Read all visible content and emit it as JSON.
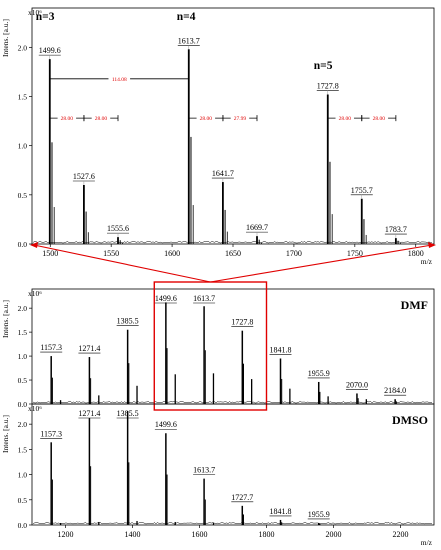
{
  "chart_data": [
    {
      "type": "line",
      "panel": "top",
      "ylabel": "Intens. [a.u.]",
      "xlabel": "m/z",
      "y_multiplier": "x10⁶",
      "xlim": [
        1485,
        1815
      ],
      "ylim": [
        0,
        2.4
      ],
      "xticks": [
        1500,
        1550,
        1600,
        1650,
        1700,
        1750,
        1800
      ],
      "yticks": [
        0.0,
        0.5,
        1.0,
        1.5,
        2.0
      ],
      "peaks": [
        {
          "mz": 1499.6,
          "intensity": 1.88,
          "label": "1499.6"
        },
        {
          "mz": 1527.6,
          "intensity": 0.6,
          "label": "1527.6"
        },
        {
          "mz": 1555.6,
          "intensity": 0.07,
          "label": "1555.6"
        },
        {
          "mz": 1613.7,
          "intensity": 1.98,
          "label": "1613.7"
        },
        {
          "mz": 1641.7,
          "intensity": 0.63,
          "label": "1641.7"
        },
        {
          "mz": 1669.7,
          "intensity": 0.08,
          "label": "1669.7"
        },
        {
          "mz": 1727.8,
          "intensity": 1.52,
          "label": "1727.8"
        },
        {
          "mz": 1755.7,
          "intensity": 0.46,
          "label": "1755.7"
        },
        {
          "mz": 1783.7,
          "intensity": 0.06,
          "label": "1783.7"
        }
      ],
      "annotations": [
        {
          "text": "n=3",
          "mz": 1499.6
        },
        {
          "text": "n=4",
          "mz": 1613.7
        },
        {
          "text": "n=5",
          "mz": 1727.8
        }
      ],
      "spacings": [
        {
          "text": "114.08",
          "from": 1499.6,
          "to": 1613.7,
          "level": 1.68
        },
        {
          "text": "28.00",
          "from": 1499.6,
          "to": 1527.6,
          "level": 1.28
        },
        {
          "text": "28.00",
          "from": 1527.6,
          "to": 1555.6,
          "level": 1.28
        },
        {
          "text": "28.00",
          "from": 1613.7,
          "to": 1641.7,
          "level": 1.28
        },
        {
          "text": "27.99",
          "from": 1641.7,
          "to": 1669.7,
          "level": 1.28
        },
        {
          "text": "28.00",
          "from": 1727.8,
          "to": 1755.7,
          "level": 1.28
        },
        {
          "text": "28.00",
          "from": 1755.7,
          "to": 1783.7,
          "level": 1.28
        }
      ]
    },
    {
      "type": "line",
      "panel": "middle",
      "name": "DMF",
      "ylabel": "Intens. [a.u.]",
      "y_multiplier": "x10⁶",
      "xlim": [
        1100,
        2300
      ],
      "ylim": [
        0,
        2.4
      ],
      "yticks": [
        0.0,
        0.5,
        1.0,
        1.5,
        2.0
      ],
      "peaks": [
        {
          "mz": 1157.3,
          "intensity": 1.0,
          "label": "1157.3"
        },
        {
          "mz": 1271.4,
          "intensity": 0.98,
          "label": "1271.4"
        },
        {
          "mz": 1385.5,
          "intensity": 1.55,
          "label": "1385.5"
        },
        {
          "mz": 1499.6,
          "intensity": 2.12,
          "label": "1499.6"
        },
        {
          "mz": 1613.7,
          "intensity": 2.04,
          "label": "1613.7"
        },
        {
          "mz": 1727.8,
          "intensity": 1.53,
          "label": "1727.8"
        },
        {
          "mz": 1841.8,
          "intensity": 0.95,
          "label": "1841.8"
        },
        {
          "mz": 1955.9,
          "intensity": 0.46,
          "label": "1955.9"
        },
        {
          "mz": 2070.0,
          "intensity": 0.22,
          "label": "2070.0"
        },
        {
          "mz": 2184.0,
          "intensity": 0.1,
          "label": "2184.0"
        }
      ],
      "minor_peaks": [
        {
          "mz": 1185.3,
          "intensity": 0.08
        },
        {
          "mz": 1299.4,
          "intensity": 0.18
        },
        {
          "mz": 1413.5,
          "intensity": 0.38
        },
        {
          "mz": 1527.6,
          "intensity": 0.62
        },
        {
          "mz": 1641.7,
          "intensity": 0.64
        },
        {
          "mz": 1755.7,
          "intensity": 0.52
        },
        {
          "mz": 1869.8,
          "intensity": 0.32
        },
        {
          "mz": 1983.9,
          "intensity": 0.16
        },
        {
          "mz": 2098.0,
          "intensity": 0.1
        }
      ],
      "zoom_box": {
        "from": 1465,
        "to": 1800
      }
    },
    {
      "type": "line",
      "panel": "bottom",
      "name": "DMSO",
      "ylabel": "Intens. [a.u.]",
      "xlabel": "m/z",
      "y_multiplier": "x10⁶",
      "xlim": [
        1100,
        2300
      ],
      "ylim": [
        0,
        2.4
      ],
      "xticks": [
        1200,
        1400,
        1600,
        1800,
        2000,
        2200
      ],
      "yticks": [
        0.0,
        0.5,
        1.0,
        1.5,
        2.0
      ],
      "peaks": [
        {
          "mz": 1157.3,
          "intensity": 1.64,
          "label": "1157.3"
        },
        {
          "mz": 1271.4,
          "intensity": 2.12,
          "label": "1271.4"
        },
        {
          "mz": 1385.5,
          "intensity": 2.26,
          "label": "1385.5"
        },
        {
          "mz": 1499.6,
          "intensity": 1.82,
          "label": "1499.6"
        },
        {
          "mz": 1613.7,
          "intensity": 0.92,
          "label": "1613.7"
        },
        {
          "mz": 1727.7,
          "intensity": 0.38,
          "label": "1727.7"
        },
        {
          "mz": 1841.8,
          "intensity": 0.1,
          "label": "1841.8"
        },
        {
          "mz": 1955.9,
          "intensity": 0.04,
          "label": "1955.9"
        }
      ],
      "minor_peaks": [
        {
          "mz": 1185.3,
          "intensity": 0.04
        },
        {
          "mz": 1299.4,
          "intensity": 0.06
        },
        {
          "mz": 1413.5,
          "intensity": 0.08
        },
        {
          "mz": 1527.6,
          "intensity": 0.06
        },
        {
          "mz": 1641.7,
          "intensity": 0.04
        }
      ]
    }
  ],
  "colors": {
    "spectrum": "#000000",
    "spacing": "#e00000",
    "highlight": "#e00000",
    "guide": "#9a9a9a"
  }
}
